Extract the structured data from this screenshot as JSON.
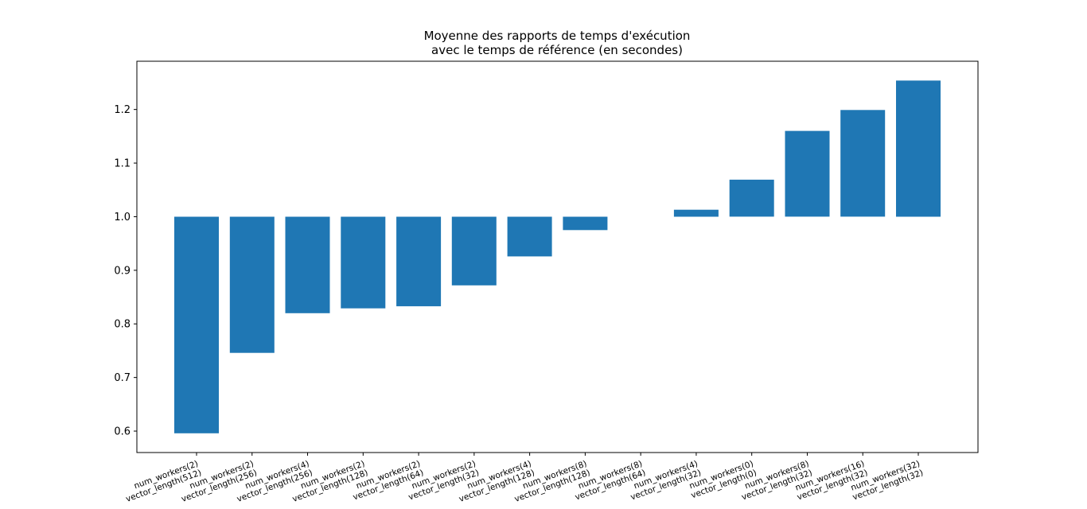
{
  "chart_data": {
    "type": "bar",
    "title_lines": [
      "Moyenne des rapports de temps d'exécution",
      "avec le temps de référence (en secondes)"
    ],
    "xlabel": "",
    "ylabel": "",
    "baseline": 1.0,
    "ylim": [
      0.56,
      1.29
    ],
    "yticks": [
      "0.6",
      "0.7",
      "0.8",
      "0.9",
      "1.0",
      "1.1",
      "1.2"
    ],
    "categories": [
      [
        "num_workers(2)",
        "vector_length(512)"
      ],
      [
        "num_workers(2)",
        "vector_length(256)"
      ],
      [
        "num_workers(4)",
        "vector_length(256)"
      ],
      [
        "num_workers(2)",
        "vector_length(128)"
      ],
      [
        "num_workers(2)",
        "vector_length(64)"
      ],
      [
        "num_workers(2)",
        "vector_length(32)"
      ],
      [
        "num_workers(4)",
        "vector_length(128)"
      ],
      [
        "num_workers(8)",
        "vector_length(128)"
      ],
      [
        "num_workers(8)",
        "vector_length(64)"
      ],
      [
        "num_workers(4)",
        "vector_length(32)"
      ],
      [
        "num_workers(0)",
        "vector_length(0)"
      ],
      [
        "num_workers(8)",
        "vector_length(32)"
      ],
      [
        "num_workers(16)",
        "vector_length(32)"
      ],
      [
        "num_workers(32)",
        "vector_length(32)"
      ]
    ],
    "values": [
      0.596,
      0.746,
      0.82,
      0.829,
      0.833,
      0.872,
      0.926,
      0.975,
      1.0,
      1.013,
      1.069,
      1.16,
      1.199,
      1.254
    ],
    "bar_color": "#1f77b4",
    "grid": false,
    "legend": "none"
  }
}
